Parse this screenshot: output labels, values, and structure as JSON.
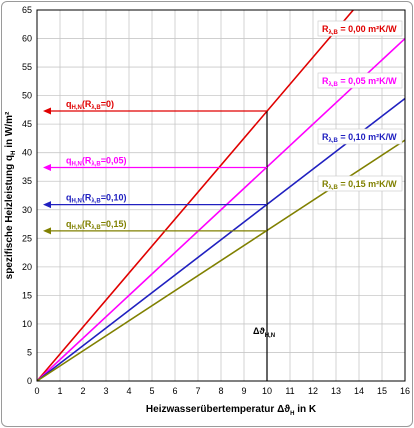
{
  "chart_data": {
    "type": "line",
    "xlabel_prefix": "Heizwasserübertemperatur  Δϑ",
    "xlabel_sub": "H",
    "xlabel_suffix": " in K",
    "ylabel_prefix": "spezifische Heizleistung q",
    "ylabel_sub": "H",
    "ylabel_suffix": " in W/m²",
    "xlim": [
      0,
      16
    ],
    "ylim": [
      0,
      65
    ],
    "x_ticks": [
      "0",
      "1",
      "2",
      "3",
      "4",
      "5",
      "6",
      "7",
      "8",
      "9",
      "10",
      "11",
      "12",
      "13",
      "14",
      "15",
      "16"
    ],
    "y_ticks": [
      "0",
      "5",
      "10",
      "15",
      "20",
      "25",
      "30",
      "35",
      "40",
      "45",
      "50",
      "55",
      "60",
      "65"
    ],
    "grid": true,
    "series": [
      {
        "name": "R",
        "name_sub": "λ,B",
        "name_suffix": " = 0,00 m²K/W",
        "color": "#e00000",
        "x": [
          0,
          13.75
        ],
        "y": [
          0,
          65
        ]
      },
      {
        "name": "R",
        "name_sub": "λ,B",
        "name_suffix": " = 0,05 m²K/W",
        "color": "#ff00ff",
        "x": [
          0,
          16
        ],
        "y": [
          0,
          60
        ]
      },
      {
        "name": "R",
        "name_sub": "λ,B",
        "name_suffix": " = 0,10 m²K/W",
        "color": "#2020c0",
        "x": [
          0,
          16
        ],
        "y": [
          0,
          49.5
        ]
      },
      {
        "name": "R",
        "name_sub": "λ,B",
        "name_suffix": " = 0,15 m²K/W",
        "color": "#808000",
        "x": [
          0,
          16
        ],
        "y": [
          0,
          42.2
        ]
      }
    ],
    "nominal_x": 10,
    "nominal_label": "Δϑ",
    "nominal_label_sub": "H,N",
    "annotations": [
      {
        "prefix": "q",
        "sub": "H,N",
        "mid": "(R",
        "sub2": "λ,B",
        "suffix": "=0)",
        "y": 47.3,
        "color": "#e00000"
      },
      {
        "prefix": "q",
        "sub": "H,N",
        "mid": "(R",
        "sub2": "λ,B",
        "suffix": "=0,05)",
        "y": 37.4,
        "color": "#ff00ff"
      },
      {
        "prefix": "q",
        "sub": "H,N",
        "mid": "(R",
        "sub2": "λ,B",
        "suffix": "=0,10)",
        "y": 30.9,
        "color": "#2020c0"
      },
      {
        "prefix": "q",
        "sub": "H,N",
        "mid": "(R",
        "sub2": "λ,B",
        "suffix": "=0,15)",
        "y": 26.3,
        "color": "#808000"
      }
    ]
  }
}
